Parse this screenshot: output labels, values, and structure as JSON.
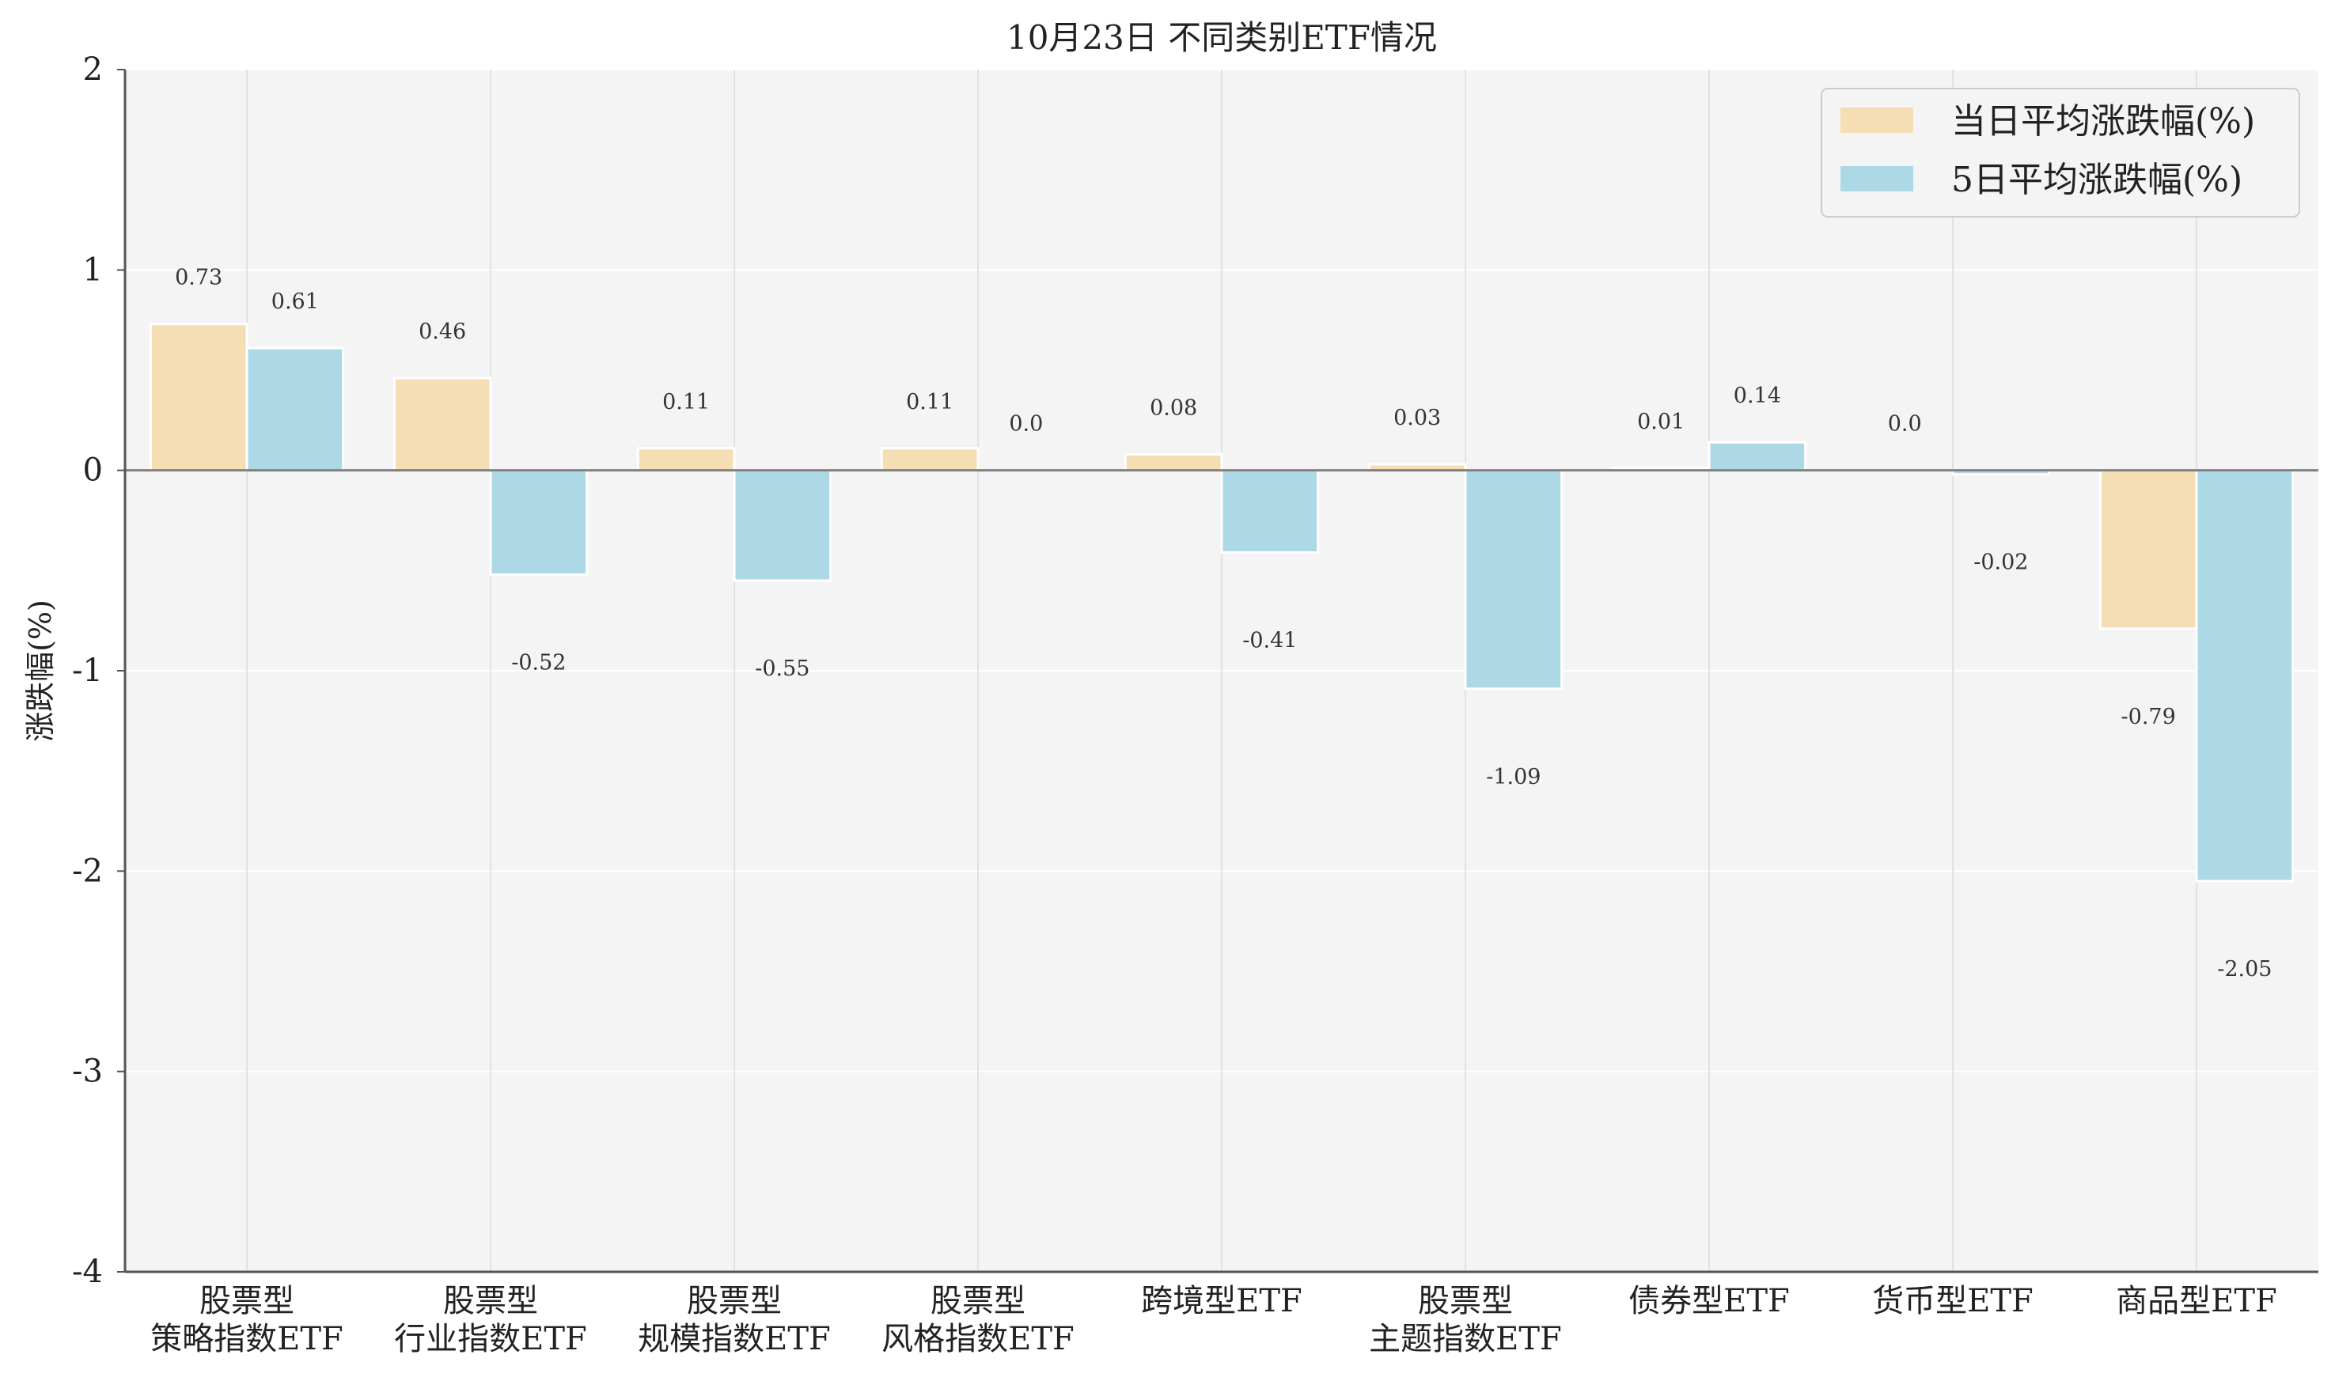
{
  "chart_data": {
    "type": "bar",
    "title": "10月23日 不同类别ETF情况",
    "xlabel": "",
    "ylabel": "涨跌幅(%)",
    "ylim": [
      -4,
      2
    ],
    "yticks": [
      2,
      1,
      0,
      -1,
      -2,
      -3,
      -4
    ],
    "ytick_labels": [
      "2",
      "1",
      "0",
      "-1",
      "-2",
      "-3",
      "-4"
    ],
    "grid": true,
    "legend_position": "top-right",
    "categories": [
      [
        "股票型",
        "策略指数ETF"
      ],
      [
        "股票型",
        "行业指数ETF"
      ],
      [
        "股票型",
        "规模指数ETF"
      ],
      [
        "股票型",
        "风格指数ETF"
      ],
      [
        "跨境型ETF"
      ],
      [
        "股票型",
        "主题指数ETF"
      ],
      [
        "债券型ETF"
      ],
      [
        "货币型ETF"
      ],
      [
        "商品型ETF"
      ]
    ],
    "series": [
      {
        "name": "当日平均涨跌幅(%)",
        "color": "#f5deb3",
        "values": [
          0.73,
          0.46,
          0.11,
          0.11,
          0.08,
          0.03,
          0.01,
          0.0,
          -0.79
        ],
        "labels": [
          "0.73",
          "0.46",
          "0.11",
          "0.11",
          "0.08",
          "0.03",
          "0.01",
          "0.0",
          "-0.79"
        ]
      },
      {
        "name": "5日平均涨跌幅(%)",
        "color": "#add8e6",
        "values": [
          0.61,
          -0.52,
          -0.55,
          0.0,
          -0.41,
          -1.09,
          0.14,
          -0.02,
          -2.05
        ],
        "labels": [
          "0.61",
          "-0.52",
          "-0.55",
          "0.0",
          "-0.41",
          "-1.09",
          "0.14",
          "-0.02",
          "-2.05"
        ]
      }
    ],
    "colors": {
      "plot_background": "#f4f4f4",
      "grid": "#ffffff",
      "axis": "#555555",
      "zero_line": "#808080"
    }
  }
}
